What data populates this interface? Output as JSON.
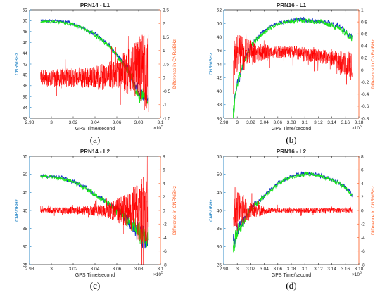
{
  "figure": {
    "left_axis_color": "#0072BD",
    "right_axis_color": "#FF5A1F",
    "series_colors": {
      "blue": "#1432c8",
      "green": "#19e619",
      "red": "#ff0000"
    },
    "x_exponent": "×10⁵",
    "exp_base": "×10",
    "exp_power": "5"
  },
  "chart_data": [
    {
      "type": "line",
      "caption": "(a)",
      "title": "PRN14 - L1",
      "xlabel": "GPS Time/second",
      "ylabel": "CNR/dBHz",
      "y2label": "Difference in CNR/dBHz",
      "xlim": [
        2.98,
        3.1
      ],
      "xticks": [
        2.98,
        3,
        3.02,
        3.04,
        3.06,
        3.08,
        3.1
      ],
      "xticklabels": [
        "2.98",
        "3",
        "3.02",
        "3.04",
        "3.06",
        "3.08",
        "3.1"
      ],
      "ylim": [
        32,
        52
      ],
      "yticks": [
        32,
        34,
        36,
        38,
        40,
        42,
        44,
        46,
        48,
        50,
        52
      ],
      "y2lim": [
        -1.5,
        2.5
      ],
      "y2ticks": [
        -1.5,
        -1,
        -0.5,
        0,
        0.5,
        1,
        1.5,
        2,
        2.5
      ],
      "y2ticklabels": [
        "-1.5",
        "-1",
        "-0.5",
        "0",
        "0.5",
        "1",
        "1.5",
        "2",
        "2.5"
      ],
      "data_xrange": [
        2.99,
        3.089
      ],
      "cnr_profile": {
        "x": [
          2.99,
          3.0,
          3.01,
          3.02,
          3.03,
          3.04,
          3.05,
          3.06,
          3.07,
          3.08,
          3.089
        ],
        "y": [
          50.0,
          50.0,
          49.8,
          49.5,
          48.6,
          47.5,
          46.0,
          43.8,
          41.0,
          36.5,
          36.0
        ]
      },
      "cnr_noise": {
        "x": [
          2.99,
          3.06,
          3.089
        ],
        "amp": [
          0.15,
          0.35,
          1.2
        ]
      },
      "diff_profile": {
        "x": [
          2.99,
          3.04,
          3.06,
          3.08,
          3.089
        ],
        "y": [
          0.0,
          0.0,
          0.15,
          0.3,
          0.2
        ]
      },
      "diff_noise": {
        "x": [
          2.99,
          3.03,
          3.06,
          3.08,
          3.089
        ],
        "amp": [
          0.3,
          0.35,
          0.55,
          1.2,
          1.6
        ]
      },
      "series": [
        {
          "key": "blue",
          "axis": "left"
        },
        {
          "key": "green",
          "axis": "left"
        },
        {
          "key": "red",
          "axis": "right"
        }
      ]
    },
    {
      "type": "line",
      "caption": "(b)",
      "title": "PRN16 - L1",
      "xlabel": "GPS Time/second",
      "ylabel": "CNR/dBHz",
      "y2label": "Difference in CNR/dBHz",
      "xlim": [
        2.98,
        3.18
      ],
      "xticks": [
        2.98,
        3,
        3.02,
        3.04,
        3.06,
        3.08,
        3.1,
        3.12,
        3.14,
        3.16,
        3.18
      ],
      "xticklabels": [
        "2.98",
        "3",
        "3.02",
        "3.04",
        "3.06",
        "3.08",
        "3.1",
        "3.12",
        "3.14",
        "3.16",
        "3.18"
      ],
      "ylim": [
        36,
        52
      ],
      "yticks": [
        36,
        38,
        40,
        42,
        44,
        46,
        48,
        50,
        52
      ],
      "y2lim": [
        -0.8,
        1
      ],
      "y2ticks": [
        -0.8,
        -0.6,
        -0.4,
        -0.2,
        0,
        0.2,
        0.4,
        0.6,
        0.8,
        1
      ],
      "y2ticklabels": [
        "-0.8",
        "-0.6",
        "-0.4",
        "-0.2",
        "0",
        "0.2",
        "0.4",
        "0.6",
        "0.8",
        "1"
      ],
      "data_xrange": [
        2.994,
        3.17
      ],
      "cnr_profile": {
        "x": [
          2.994,
          3.0,
          3.01,
          3.02,
          3.03,
          3.05,
          3.07,
          3.09,
          3.11,
          3.13,
          3.15,
          3.17
        ],
        "y": [
          37.0,
          41.0,
          44.5,
          46.5,
          48.0,
          49.6,
          50.3,
          50.6,
          50.5,
          50.2,
          49.5,
          48.0
        ]
      },
      "cnr_noise": {
        "x": [
          2.994,
          3.01,
          3.05,
          3.17
        ],
        "amp": [
          0.8,
          0.4,
          0.2,
          0.35
        ]
      },
      "diff_profile": {
        "x": [
          2.994,
          3.0,
          3.02,
          3.08,
          3.14,
          3.17
        ],
        "y": [
          0.0,
          0.25,
          0.3,
          0.3,
          0.2,
          0.05
        ]
      },
      "diff_noise": {
        "x": [
          2.994,
          3.0,
          3.02,
          3.05,
          3.14,
          3.17
        ],
        "amp": [
          0.45,
          0.35,
          0.2,
          0.1,
          0.12,
          0.25
        ]
      },
      "series": [
        {
          "key": "blue",
          "axis": "left"
        },
        {
          "key": "green",
          "axis": "left"
        },
        {
          "key": "red",
          "axis": "right"
        }
      ]
    },
    {
      "type": "line",
      "caption": "(c)",
      "title": "PRN14 - L2",
      "xlabel": "GPS Time/second",
      "ylabel": "CNR/dBHz",
      "y2label": "Difference in CNR/dBHz",
      "xlim": [
        2.98,
        3.1
      ],
      "xticks": [
        2.98,
        3,
        3.02,
        3.04,
        3.06,
        3.08,
        3.1
      ],
      "xticklabels": [
        "2.98",
        "3",
        "3.02",
        "3.04",
        "3.06",
        "3.08",
        "3.1"
      ],
      "ylim": [
        25,
        55
      ],
      "yticks": [
        25,
        30,
        35,
        40,
        45,
        50,
        55
      ],
      "y2lim": [
        -8,
        8
      ],
      "y2ticks": [
        -8,
        -6,
        -4,
        -2,
        0,
        2,
        4,
        6,
        8
      ],
      "y2ticklabels": [
        "-8",
        "-6",
        "-4",
        "-2",
        "0",
        "2",
        "4",
        "6",
        "8"
      ],
      "data_xrange": [
        2.99,
        3.089
      ],
      "cnr_profile": {
        "x": [
          2.99,
          3.0,
          3.01,
          3.02,
          3.03,
          3.04,
          3.05,
          3.06,
          3.07,
          3.08,
          3.089
        ],
        "y": [
          49.5,
          49.5,
          49.0,
          48.0,
          46.5,
          44.5,
          42.5,
          40.0,
          37.5,
          34.0,
          32.0
        ]
      },
      "cnr_noise": {
        "x": [
          2.99,
          3.05,
          3.07,
          3.089
        ],
        "amp": [
          0.3,
          0.6,
          1.5,
          3.0
        ]
      },
      "diff_profile": {
        "x": [
          2.99,
          3.089
        ],
        "y": [
          0.0,
          0.0
        ]
      },
      "diff_noise": {
        "x": [
          2.99,
          3.03,
          3.05,
          3.07,
          3.08,
          3.089
        ],
        "amp": [
          0.4,
          0.6,
          1.0,
          2.5,
          4.5,
          5.5
        ]
      },
      "series": [
        {
          "key": "blue",
          "axis": "left"
        },
        {
          "key": "green",
          "axis": "left"
        },
        {
          "key": "red",
          "axis": "right"
        }
      ]
    },
    {
      "type": "line",
      "caption": "(d)",
      "title": "PRN16 - L2",
      "xlabel": "GPS Time/second",
      "ylabel": "CNR/dBHz",
      "y2label": "Difference in CNR/dBHz",
      "xlim": [
        2.98,
        3.18
      ],
      "xticks": [
        2.98,
        3,
        3.02,
        3.04,
        3.06,
        3.08,
        3.1,
        3.12,
        3.14,
        3.16,
        3.18
      ],
      "xticklabels": [
        "2.98",
        "3",
        "3.02",
        "3.04",
        "3.06",
        "3.08",
        "3.1",
        "3.12",
        "3.14",
        "3.16",
        "3.18"
      ],
      "ylim": [
        25,
        55
      ],
      "yticks": [
        25,
        30,
        35,
        40,
        45,
        50,
        55
      ],
      "y2lim": [
        -8,
        8
      ],
      "y2ticks": [
        -8,
        -6,
        -4,
        -2,
        0,
        2,
        4,
        6,
        8
      ],
      "y2ticklabels": [
        "-8",
        "-6",
        "-4",
        "-2",
        "0",
        "2",
        "4",
        "6",
        "8"
      ],
      "data_xrange": [
        2.994,
        3.17
      ],
      "cnr_profile": {
        "x": [
          2.994,
          3.0,
          3.01,
          3.02,
          3.04,
          3.06,
          3.08,
          3.1,
          3.12,
          3.14,
          3.16,
          3.17
        ],
        "y": [
          30.0,
          34.0,
          37.0,
          40.5,
          44.0,
          47.5,
          49.5,
          50.2,
          49.8,
          48.5,
          46.5,
          44.5
        ]
      },
      "cnr_noise": {
        "x": [
          2.994,
          3.01,
          3.05,
          3.17
        ],
        "amp": [
          2.5,
          1.0,
          0.4,
          0.5
        ]
      },
      "diff_profile": {
        "x": [
          2.994,
          3.17
        ],
        "y": [
          0.0,
          0.0
        ]
      },
      "diff_noise": {
        "x": [
          2.994,
          3.0,
          3.02,
          3.05,
          3.17
        ],
        "amp": [
          4.5,
          3.0,
          1.2,
          0.4,
          0.35
        ]
      },
      "series": [
        {
          "key": "blue",
          "axis": "left"
        },
        {
          "key": "green",
          "axis": "left"
        },
        {
          "key": "red",
          "axis": "right"
        }
      ]
    }
  ]
}
